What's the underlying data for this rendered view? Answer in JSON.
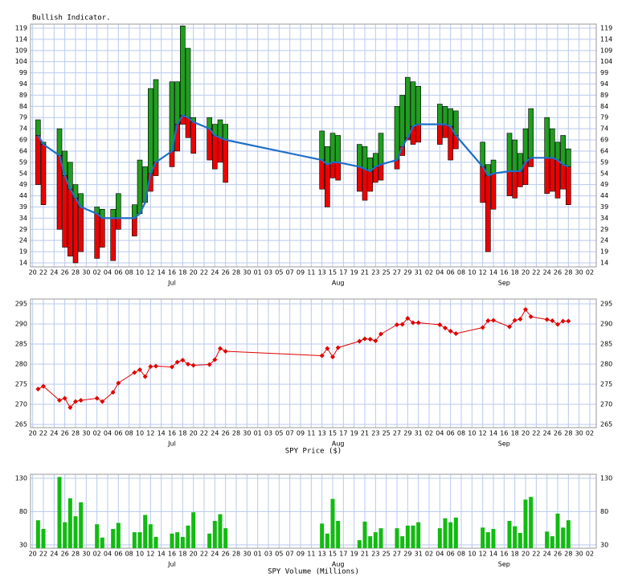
{
  "chart_data": [
    {
      "type": "range-bar",
      "title": "Bullish Indicator.",
      "x": [
        172,
        173,
        176,
        177,
        178,
        179,
        180,
        183,
        184,
        186,
        187,
        190,
        191,
        192,
        193,
        194,
        197,
        198,
        199,
        200,
        201,
        204,
        205,
        206,
        207,
        225,
        226,
        227,
        228,
        232,
        233,
        234,
        235,
        236,
        239,
        240,
        241,
        242,
        243,
        247,
        248,
        249,
        250,
        255,
        256,
        257,
        260,
        261,
        262,
        263,
        264,
        267,
        268,
        269,
        270,
        271
      ],
      "high": [
        78,
        68,
        74,
        64,
        59,
        49,
        45,
        39,
        38,
        38,
        45,
        40,
        60,
        57,
        92,
        96,
        95,
        95,
        120,
        110,
        79,
        79,
        76,
        78,
        76,
        73,
        66,
        72,
        71,
        67,
        66,
        61,
        63,
        72,
        84,
        89,
        97,
        95,
        93,
        85,
        84,
        83,
        82,
        68,
        58,
        60,
        72,
        69,
        63,
        74,
        83,
        79,
        74,
        68,
        71,
        65
      ],
      "low": [
        49,
        40,
        29,
        21,
        17,
        14,
        19,
        16,
        21,
        15,
        29,
        26,
        36,
        41,
        46,
        53,
        57,
        64,
        76,
        70,
        63,
        60,
        56,
        59,
        50,
        47,
        39,
        52,
        51,
        46,
        42,
        46,
        50,
        51,
        56,
        62,
        69,
        67,
        68,
        67,
        70,
        60,
        65,
        41,
        19,
        38,
        44,
        43,
        48,
        49,
        57,
        45,
        46,
        43,
        47,
        40
      ],
      "values": [
        71,
        67,
        62,
        53,
        47,
        43,
        39,
        36,
        34,
        34,
        34,
        34,
        36,
        41,
        54,
        59,
        64,
        76,
        80,
        79,
        77,
        74,
        71,
        70,
        69,
        60,
        58,
        59,
        59,
        57,
        56,
        55,
        57,
        58,
        60,
        66,
        70,
        75,
        76,
        76,
        76,
        75,
        71,
        57,
        53,
        54,
        55,
        55,
        55,
        59,
        61,
        61,
        61,
        60,
        58,
        57
      ],
      "up_color": "#1f9e1f",
      "down_color": "#ee0000",
      "line_color": "#1f6fc6",
      "xlim": [
        170.6,
        276.2
      ],
      "ylim": [
        12.2,
        120.8
      ],
      "yticks": [
        14,
        19,
        24,
        29,
        34,
        39,
        44,
        49,
        54,
        59,
        64,
        69,
        74,
        79,
        84,
        89,
        94,
        99,
        104,
        109,
        114,
        119
      ],
      "xticks": [
        {
          "value": 171,
          "label": "20"
        },
        {
          "value": 173,
          "label": "22"
        },
        {
          "value": 175,
          "label": "24"
        },
        {
          "value": 177,
          "label": "26"
        },
        {
          "value": 179,
          "label": "28"
        },
        {
          "value": 181,
          "label": "30"
        },
        {
          "value": 183,
          "label": "02"
        },
        {
          "value": 185,
          "label": "04"
        },
        {
          "value": 187,
          "label": "06"
        },
        {
          "value": 189,
          "label": "08"
        },
        {
          "value": 191,
          "label": "10"
        },
        {
          "value": 193,
          "label": "12"
        },
        {
          "value": 195,
          "label": "14"
        },
        {
          "value": 197,
          "label": "16"
        },
        {
          "value": 199,
          "label": "18"
        },
        {
          "value": 201,
          "label": "20"
        },
        {
          "value": 203,
          "label": "22"
        },
        {
          "value": 205,
          "label": "24"
        },
        {
          "value": 207,
          "label": "26"
        },
        {
          "value": 209,
          "label": "28"
        },
        {
          "value": 211,
          "label": "30"
        },
        {
          "value": 213,
          "label": "01"
        },
        {
          "value": 215,
          "label": "03"
        },
        {
          "value": 217,
          "label": "05"
        },
        {
          "value": 219,
          "label": "07"
        },
        {
          "value": 221,
          "label": "09"
        },
        {
          "value": 223,
          "label": "11"
        },
        {
          "value": 225,
          "label": "13"
        },
        {
          "value": 227,
          "label": "15"
        },
        {
          "value": 229,
          "label": "17"
        },
        {
          "value": 231,
          "label": "19"
        },
        {
          "value": 233,
          "label": "21"
        },
        {
          "value": 235,
          "label": "23"
        },
        {
          "value": 237,
          "label": "25"
        },
        {
          "value": 239,
          "label": "27"
        },
        {
          "value": 241,
          "label": "29"
        },
        {
          "value": 243,
          "label": "31"
        },
        {
          "value": 245,
          "label": "02"
        },
        {
          "value": 247,
          "label": "04"
        },
        {
          "value": 249,
          "label": "06"
        },
        {
          "value": 251,
          "label": "08"
        },
        {
          "value": 253,
          "label": "10"
        },
        {
          "value": 255,
          "label": "12"
        },
        {
          "value": 257,
          "label": "14"
        },
        {
          "value": 259,
          "label": "16"
        },
        {
          "value": 261,
          "label": "18"
        },
        {
          "value": 263,
          "label": "20"
        },
        {
          "value": 265,
          "label": "22"
        },
        {
          "value": 267,
          "label": "24"
        },
        {
          "value": 269,
          "label": "26"
        },
        {
          "value": 271,
          "label": "28"
        },
        {
          "value": 273,
          "label": "30"
        },
        {
          "value": 275,
          "label": "02"
        }
      ],
      "months": [
        {
          "value": 197,
          "label": "Jul"
        },
        {
          "value": 228,
          "label": "Aug"
        },
        {
          "value": 259,
          "label": "Sep"
        }
      ],
      "grid": true,
      "grid_color": "#b9c9ee",
      "mirror_y": true,
      "title_position": "top-left"
    },
    {
      "type": "line",
      "title": "SPY Price ($)",
      "x": [
        172,
        173,
        176,
        177,
        178,
        179,
        180,
        183,
        184,
        186,
        187,
        190,
        191,
        192,
        193,
        194,
        197,
        198,
        199,
        200,
        201,
        204,
        205,
        206,
        207,
        225,
        226,
        227,
        228,
        232,
        233,
        234,
        235,
        236,
        239,
        240,
        241,
        242,
        243,
        247,
        248,
        249,
        250,
        255,
        256,
        257,
        260,
        261,
        262,
        263,
        264,
        267,
        268,
        269,
        270,
        271
      ],
      "values": [
        273.8,
        274.5,
        271,
        271.5,
        269.2,
        270.7,
        271,
        271.5,
        270.7,
        273,
        275.3,
        277.9,
        278.6,
        276.9,
        279.4,
        279.5,
        279.3,
        280.5,
        281,
        280,
        279.7,
        279.9,
        281.1,
        283.9,
        283.2,
        282.1,
        283.9,
        281.8,
        284.1,
        285.7,
        286.3,
        286.2,
        285.8,
        287.5,
        289.8,
        289.9,
        291.4,
        290.3,
        290.3,
        289.8,
        289,
        288.2,
        287.6,
        289.1,
        290.8,
        290.9,
        289.3,
        290.9,
        291.2,
        293.6,
        291.8,
        291.1,
        290.8,
        289.9,
        290.7,
        290.7
      ],
      "color": "#e00000",
      "xlim": [
        170.6,
        276.2
      ],
      "ylim": [
        264.2,
        296.2
      ],
      "yticks": [
        265,
        270,
        275,
        280,
        285,
        290,
        295
      ],
      "xticks": [
        {
          "value": 171,
          "label": "20"
        },
        {
          "value": 173,
          "label": "22"
        },
        {
          "value": 175,
          "label": "24"
        },
        {
          "value": 177,
          "label": "26"
        },
        {
          "value": 179,
          "label": "28"
        },
        {
          "value": 181,
          "label": "30"
        },
        {
          "value": 183,
          "label": "02"
        },
        {
          "value": 185,
          "label": "04"
        },
        {
          "value": 187,
          "label": "06"
        },
        {
          "value": 189,
          "label": "08"
        },
        {
          "value": 191,
          "label": "10"
        },
        {
          "value": 193,
          "label": "12"
        },
        {
          "value": 195,
          "label": "14"
        },
        {
          "value": 197,
          "label": "16"
        },
        {
          "value": 199,
          "label": "18"
        },
        {
          "value": 201,
          "label": "20"
        },
        {
          "value": 203,
          "label": "22"
        },
        {
          "value": 205,
          "label": "24"
        },
        {
          "value": 207,
          "label": "26"
        },
        {
          "value": 209,
          "label": "28"
        },
        {
          "value": 211,
          "label": "30"
        },
        {
          "value": 213,
          "label": "01"
        },
        {
          "value": 215,
          "label": "03"
        },
        {
          "value": 217,
          "label": "05"
        },
        {
          "value": 219,
          "label": "07"
        },
        {
          "value": 221,
          "label": "09"
        },
        {
          "value": 223,
          "label": "11"
        },
        {
          "value": 225,
          "label": "13"
        },
        {
          "value": 227,
          "label": "15"
        },
        {
          "value": 229,
          "label": "17"
        },
        {
          "value": 231,
          "label": "19"
        },
        {
          "value": 233,
          "label": "21"
        },
        {
          "value": 235,
          "label": "23"
        },
        {
          "value": 237,
          "label": "25"
        },
        {
          "value": 239,
          "label": "27"
        },
        {
          "value": 241,
          "label": "29"
        },
        {
          "value": 243,
          "label": "31"
        },
        {
          "value": 245,
          "label": "02"
        },
        {
          "value": 247,
          "label": "04"
        },
        {
          "value": 249,
          "label": "06"
        },
        {
          "value": 251,
          "label": "08"
        },
        {
          "value": 253,
          "label": "10"
        },
        {
          "value": 255,
          "label": "12"
        },
        {
          "value": 257,
          "label": "14"
        },
        {
          "value": 259,
          "label": "16"
        },
        {
          "value": 261,
          "label": "18"
        },
        {
          "value": 263,
          "label": "20"
        },
        {
          "value": 265,
          "label": "22"
        },
        {
          "value": 267,
          "label": "24"
        },
        {
          "value": 269,
          "label": "26"
        },
        {
          "value": 271,
          "label": "28"
        },
        {
          "value": 273,
          "label": "30"
        },
        {
          "value": 275,
          "label": "02"
        }
      ],
      "months": [
        {
          "value": 197,
          "label": "Jul"
        },
        {
          "value": 228,
          "label": "Aug"
        },
        {
          "value": 259,
          "label": "Sep"
        }
      ],
      "grid": true,
      "grid_color": "#b9c9ee",
      "mirror_y": true,
      "title_position": "bottom"
    },
    {
      "type": "bar",
      "title": "SPY Volume (Millions)",
      "x": [
        172,
        173,
        176,
        177,
        178,
        179,
        180,
        183,
        184,
        186,
        187,
        190,
        191,
        192,
        193,
        194,
        197,
        198,
        199,
        200,
        201,
        204,
        205,
        206,
        207,
        225,
        226,
        227,
        228,
        232,
        233,
        234,
        235,
        236,
        239,
        240,
        241,
        242,
        243,
        247,
        248,
        249,
        250,
        255,
        256,
        257,
        260,
        261,
        262,
        263,
        264,
        267,
        268,
        269,
        270,
        271
      ],
      "values": [
        67,
        54,
        132,
        64,
        100,
        73,
        94,
        61,
        41,
        54,
        63,
        49,
        49,
        75,
        61,
        42,
        47,
        49,
        42,
        59,
        79,
        47,
        66,
        76,
        55,
        62,
        47,
        99,
        66,
        37,
        65,
        43,
        49,
        55,
        55,
        43,
        59,
        59,
        64,
        55,
        70,
        64,
        71,
        56,
        49,
        54,
        66,
        58,
        48,
        98,
        102,
        50,
        43,
        77,
        56,
        67
      ],
      "color": "#11bb11",
      "xlim": [
        170.6,
        276.2
      ],
      "ylim": [
        25,
        136
      ],
      "yticks": [
        30,
        80,
        130
      ],
      "xticks": [
        {
          "value": 171,
          "label": "20"
        },
        {
          "value": 173,
          "label": "22"
        },
        {
          "value": 175,
          "label": "24"
        },
        {
          "value": 177,
          "label": "26"
        },
        {
          "value": 179,
          "label": "28"
        },
        {
          "value": 181,
          "label": "30"
        },
        {
          "value": 183,
          "label": "02"
        },
        {
          "value": 185,
          "label": "04"
        },
        {
          "value": 187,
          "label": "06"
        },
        {
          "value": 189,
          "label": "08"
        },
        {
          "value": 191,
          "label": "10"
        },
        {
          "value": 193,
          "label": "12"
        },
        {
          "value": 195,
          "label": "14"
        },
        {
          "value": 197,
          "label": "16"
        },
        {
          "value": 199,
          "label": "18"
        },
        {
          "value": 201,
          "label": "20"
        },
        {
          "value": 203,
          "label": "22"
        },
        {
          "value": 205,
          "label": "24"
        },
        {
          "value": 207,
          "label": "26"
        },
        {
          "value": 209,
          "label": "28"
        },
        {
          "value": 211,
          "label": "30"
        },
        {
          "value": 213,
          "label": "01"
        },
        {
          "value": 215,
          "label": "03"
        },
        {
          "value": 217,
          "label": "05"
        },
        {
          "value": 219,
          "label": "07"
        },
        {
          "value": 221,
          "label": "09"
        },
        {
          "value": 223,
          "label": "11"
        },
        {
          "value": 225,
          "label": "13"
        },
        {
          "value": 227,
          "label": "15"
        },
        {
          "value": 229,
          "label": "17"
        },
        {
          "value": 231,
          "label": "19"
        },
        {
          "value": 233,
          "label": "21"
        },
        {
          "value": 235,
          "label": "23"
        },
        {
          "value": 237,
          "label": "25"
        },
        {
          "value": 239,
          "label": "27"
        },
        {
          "value": 241,
          "label": "29"
        },
        {
          "value": 243,
          "label": "31"
        },
        {
          "value": 245,
          "label": "02"
        },
        {
          "value": 247,
          "label": "04"
        },
        {
          "value": 249,
          "label": "06"
        },
        {
          "value": 251,
          "label": "08"
        },
        {
          "value": 253,
          "label": "10"
        },
        {
          "value": 255,
          "label": "12"
        },
        {
          "value": 257,
          "label": "14"
        },
        {
          "value": 259,
          "label": "16"
        },
        {
          "value": 261,
          "label": "18"
        },
        {
          "value": 263,
          "label": "20"
        },
        {
          "value": 265,
          "label": "22"
        },
        {
          "value": 267,
          "label": "24"
        },
        {
          "value": 269,
          "label": "26"
        },
        {
          "value": 271,
          "label": "28"
        },
        {
          "value": 273,
          "label": "30"
        },
        {
          "value": 275,
          "label": "02"
        }
      ],
      "months": [
        {
          "value": 197,
          "label": "Jul"
        },
        {
          "value": 228,
          "label": "Aug"
        },
        {
          "value": 259,
          "label": "Sep"
        }
      ],
      "grid": true,
      "grid_color": "#b9c9ee",
      "mirror_y": true,
      "title_position": "bottom"
    }
  ]
}
